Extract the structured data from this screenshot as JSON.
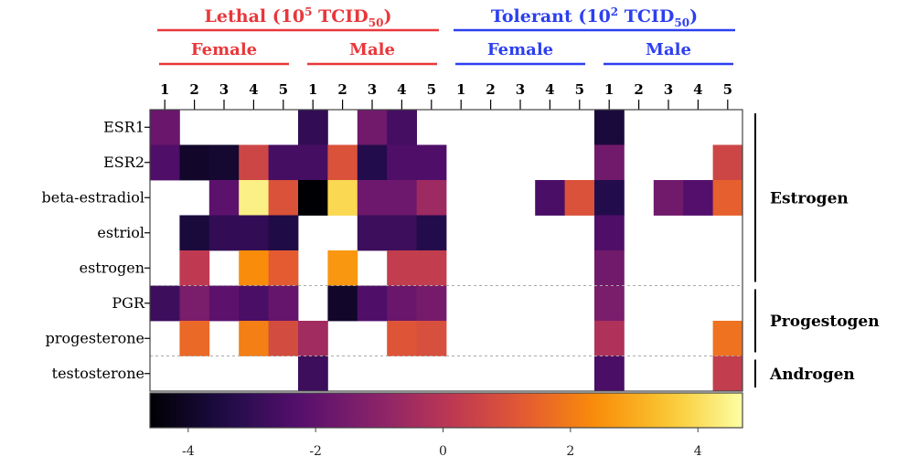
{
  "chart_data": {
    "type": "heatmap",
    "colormap": "inferno",
    "color_range": [
      -4.6,
      4.7
    ],
    "colorbar_ticks": [
      "-4",
      "-2",
      "0",
      "2",
      "4"
    ],
    "colorbar_tick_values": [
      -4,
      -2,
      0,
      2,
      4
    ],
    "column_groups": [
      {
        "condition": "Lethal",
        "dose": "(10",
        "dose_exp": "5",
        "dose_unit": " TCID",
        "dose_sub": "50",
        "dose_close": ")",
        "color": "#e8373b",
        "sexes": [
          {
            "label": "Female",
            "columns": [
              "1",
              "2",
              "3",
              "4",
              "5"
            ]
          },
          {
            "label": "Male",
            "columns": [
              "1",
              "2",
              "3",
              "4",
              "5"
            ]
          }
        ]
      },
      {
        "condition": "Tolerant",
        "dose": "(10",
        "dose_exp": "2",
        "dose_unit": " TCID",
        "dose_sub": "50",
        "dose_close": ")",
        "color": "#2c3ff0",
        "sexes": [
          {
            "label": "Female",
            "columns": [
              "1",
              "2",
              "3",
              "4",
              "5"
            ]
          },
          {
            "label": "Male",
            "columns": [
              "1",
              "2",
              "3",
              "4",
              "5"
            ]
          }
        ]
      }
    ],
    "rows": [
      "ESR1",
      "ESR2",
      "beta-estradiol",
      "estriol",
      "estrogen",
      "PGR",
      "progesterone",
      "testosterone"
    ],
    "row_groups": [
      {
        "label": "Estrogen",
        "rows": [
          "ESR1",
          "ESR2",
          "beta-estradiol",
          "estriol",
          "estrogen"
        ]
      },
      {
        "label": "Progestogen",
        "rows": [
          "PGR",
          "progesterone"
        ]
      },
      {
        "label": "Androgen",
        "rows": [
          "testosterone"
        ]
      }
    ],
    "values": [
      [
        -1.8,
        null,
        null,
        null,
        null,
        -3.0,
        null,
        -1.6,
        -2.6,
        null,
        null,
        null,
        null,
        null,
        null,
        -3.6,
        null,
        null,
        null,
        null
      ],
      [
        -2.4,
        -3.9,
        -3.8,
        0.6,
        -2.6,
        -2.6,
        1.0,
        -3.3,
        -2.4,
        -2.4,
        null,
        null,
        null,
        null,
        null,
        -1.6,
        null,
        null,
        null,
        0.6
      ],
      [
        null,
        null,
        -2.1,
        4.4,
        1.0,
        -4.6,
        3.9,
        -1.7,
        -1.7,
        -0.6,
        null,
        null,
        null,
        -2.5,
        1.0,
        -3.3,
        null,
        -1.6,
        -2.3,
        1.4
      ],
      [
        null,
        -3.6,
        -3.0,
        -3.0,
        -3.4,
        null,
        null,
        -2.8,
        -2.8,
        -3.3,
        null,
        null,
        null,
        null,
        null,
        -2.4,
        null,
        null,
        null,
        null
      ],
      [
        null,
        0.2,
        null,
        2.4,
        1.3,
        null,
        2.6,
        null,
        0.3,
        0.3,
        null,
        null,
        null,
        null,
        null,
        -1.6,
        null,
        null,
        null,
        null
      ],
      [
        -2.8,
        -1.4,
        -2.1,
        -2.5,
        -1.9,
        null,
        -3.9,
        -2.4,
        -1.8,
        -1.5,
        null,
        null,
        null,
        null,
        null,
        -1.4,
        null,
        null,
        null,
        null
      ],
      [
        null,
        1.6,
        null,
        2.1,
        0.8,
        -0.5,
        null,
        null,
        1.1,
        0.9,
        null,
        null,
        null,
        null,
        null,
        -0.2,
        null,
        null,
        null,
        1.8
      ],
      [
        null,
        null,
        null,
        null,
        null,
        -2.8,
        null,
        null,
        null,
        null,
        null,
        null,
        null,
        null,
        null,
        -2.5,
        null,
        null,
        null,
        0.3
      ]
    ],
    "xlabel": "",
    "ylabel": ""
  }
}
